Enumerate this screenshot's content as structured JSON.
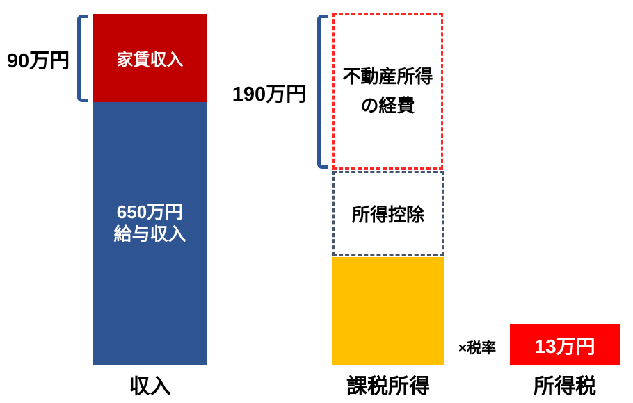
{
  "diagram": {
    "income": {
      "bracket_value": "90万円",
      "rent_box_label": "家賃収入",
      "salary_box_line1": "650万円",
      "salary_box_line2": "給与収入",
      "axis_label": "収入"
    },
    "taxable": {
      "bracket_value": "190万円",
      "expense_box_line1": "不動産所得",
      "expense_box_line2": "の経費",
      "deduction_box_label": "所得控除",
      "axis_label": "課税所得"
    },
    "tax": {
      "rate_label": "×税率",
      "tax_box_label": "13万円",
      "axis_label": "所得税"
    }
  },
  "chart_data": {
    "type": "bar",
    "unit": "万円",
    "title": "",
    "xlabel": "",
    "ylabel": "",
    "legend": false,
    "grid": false,
    "categories": [
      "収入",
      "課税所得",
      "所得税"
    ],
    "bars": [
      {
        "category": "収入",
        "segments": [
          {
            "label": "家賃収入",
            "value": 90,
            "style": "solid",
            "color": "#C00000",
            "annotation": "90万円"
          },
          {
            "label": "給与収入",
            "value": 650,
            "style": "solid",
            "color": "#2F5492"
          }
        ]
      },
      {
        "category": "課税所得",
        "segments": [
          {
            "label": "不動産所得の経費",
            "value": 190,
            "style": "dashed-outline",
            "color": "#FF2626",
            "annotation": "190万円"
          },
          {
            "label": "所得控除",
            "style": "dashed-outline",
            "color": "#44546A"
          },
          {
            "label": "課税所得",
            "style": "solid",
            "color": "#FFC000"
          }
        ]
      },
      {
        "category": "所得税",
        "segments": [
          {
            "label": "13万円",
            "value": 13,
            "style": "solid",
            "color": "#FF0000"
          }
        ]
      }
    ],
    "annotations": [
      "90万円",
      "190万円",
      "×税率"
    ]
  },
  "colors": {
    "background": "#FFFFFF",
    "rent_fill": "#C00000",
    "salary_fill": "#2F5492",
    "bracket_stroke": "#2E5597",
    "expense_dash": "#FF2626",
    "deduction_dash": "#44546A",
    "taxable_fill": "#FFC000",
    "tax_fill": "#FF0000",
    "label_text": "#000000",
    "box_text_light": "#FFFFFF"
  }
}
